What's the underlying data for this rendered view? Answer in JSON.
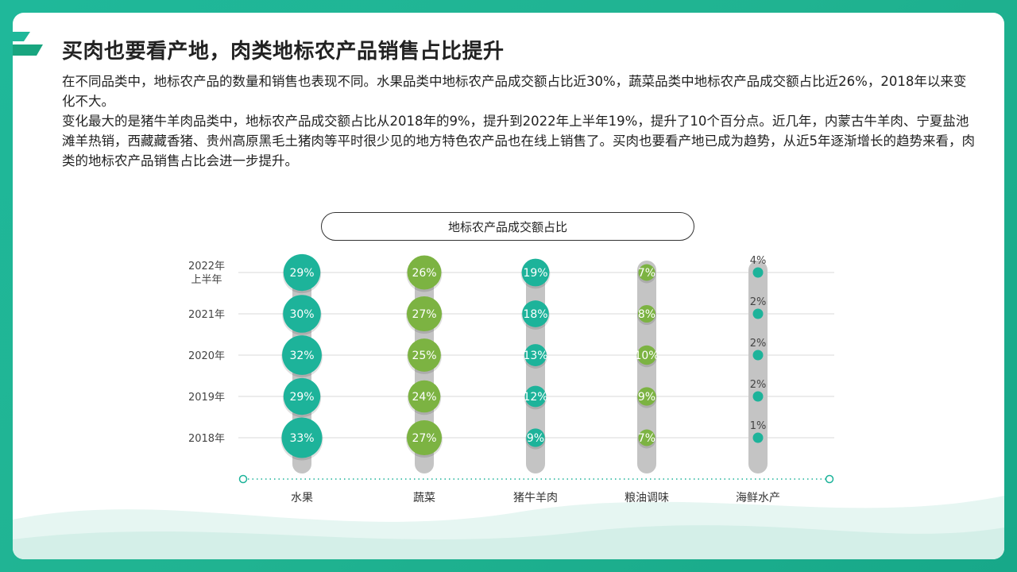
{
  "title": "买肉也要看产地，肉类地标农产品销售占比提升",
  "paragraphs": [
    "在不同品类中，地标农产品的数量和销售也表现不同。水果品类中地标农产品成交额占比近30%，蔬菜品类中地标农产品成交额占比近26%，2018年以来变化不大。",
    "变化最大的是猪牛羊肉品类中，地标农产品成交额占比从2018年的9%，提升到2022年上半年19%，提升了10个百分点。近几年，内蒙古牛羊肉、宁夏盐池滩羊热销，西藏藏香猪、贵州高原黑毛土猪肉等平时很少见的地方特色农产品也在线上销售了。买肉也要看产地已成为趋势，从近5年逐渐增长的趋势来看，肉类的地标农产品销售占比会进一步提升。"
  ],
  "colors": {
    "teal": "#1db39a",
    "green": "#7cb342",
    "track": "#c4c4c4",
    "grid": "#d9d9d9",
    "frame": "#1fb89a"
  },
  "chart_data": {
    "type": "bubble",
    "title": "地标农产品成交额占比",
    "categories": [
      "水果",
      "蔬菜",
      "猪牛羊肉",
      "粮油调味",
      "海鲜水产"
    ],
    "years": [
      "2018年",
      "2019年",
      "2020年",
      "2021年",
      "2022年上半年"
    ],
    "year_label_lines": [
      [
        "2018年"
      ],
      [
        "2019年"
      ],
      [
        "2020年"
      ],
      [
        "2021年"
      ],
      [
        "2022年",
        "上半年"
      ]
    ],
    "series": [
      {
        "name": "水果",
        "values": [
          33,
          29,
          32,
          30,
          29
        ],
        "color": "teal"
      },
      {
        "name": "蔬菜",
        "values": [
          27,
          24,
          25,
          27,
          26
        ],
        "color": "green"
      },
      {
        "name": "猪牛羊肉",
        "values": [
          9,
          12,
          13,
          18,
          19
        ],
        "color": "teal"
      },
      {
        "name": "粮油调味",
        "values": [
          7,
          9,
          10,
          8,
          7
        ],
        "color": "green"
      },
      {
        "name": "海鲜水产",
        "values": [
          1,
          2,
          2,
          2,
          4
        ],
        "color": "teal"
      }
    ],
    "value_suffix": "%"
  }
}
